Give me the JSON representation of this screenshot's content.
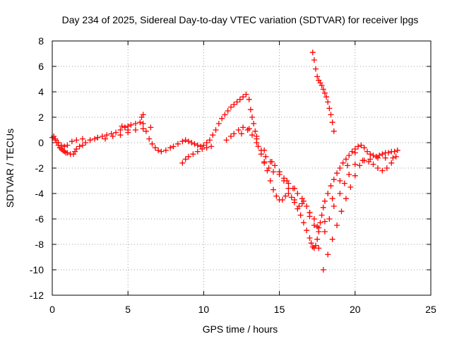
{
  "chart_data": {
    "type": "scatter",
    "title": "Day 234 of 2025, Sidereal Day-to-day VTEC variation (SDTVAR) for receiver lpgs",
    "xlabel": "GPS time / hours",
    "ylabel": "SDTVAR / TECUs",
    "xlim": [
      0,
      25
    ],
    "ylim": [
      -12,
      8
    ],
    "xticks": [
      0,
      5,
      10,
      15,
      20,
      25
    ],
    "yticks": [
      -12,
      -10,
      -8,
      -6,
      -4,
      -2,
      0,
      2,
      4,
      6,
      8
    ],
    "xtick_labels": [
      "0",
      "5",
      "10",
      "15",
      "20",
      "25"
    ],
    "ytick_labels": [
      "-12",
      "-10",
      "-8",
      "-6",
      "-4",
      "-2",
      "0",
      "2",
      "4",
      "6",
      "8"
    ],
    "grid": true,
    "marker": "+",
    "color": "#ff0000",
    "series": [
      {
        "name": "SDTVAR",
        "x": [
          0.0,
          0.1,
          0.2,
          0.3,
          0.4,
          0.5,
          0.6,
          0.7,
          0.8,
          0.9,
          1.0,
          1.2,
          1.4,
          1.5,
          1.6,
          1.8,
          2.0,
          2.2,
          2.5,
          2.8,
          3.0,
          3.3,
          3.6,
          3.9,
          4.2,
          4.5,
          4.8,
          5.0,
          5.2,
          5.5,
          5.8,
          6.0,
          6.2,
          6.4,
          6.6,
          6.8,
          7.0,
          7.2,
          7.5,
          7.8,
          8.0,
          8.3,
          8.6,
          8.8,
          9.0,
          9.2,
          9.4,
          9.6,
          9.8,
          10.0,
          10.2,
          10.4,
          10.6,
          10.8,
          11.0,
          11.2,
          11.4,
          11.6,
          11.8,
          12.0,
          12.2,
          12.4,
          12.6,
          12.8,
          13.0,
          13.1,
          13.2,
          13.3,
          13.4,
          13.5,
          13.6,
          13.8,
          14.0,
          14.2,
          14.4,
          14.6,
          14.8,
          15.0,
          15.2,
          15.4,
          15.6,
          15.8,
          16.0,
          16.2,
          16.4,
          16.6,
          16.8,
          17.0,
          17.1,
          17.2,
          17.3,
          17.4,
          17.5,
          17.6,
          17.7,
          17.8,
          17.9,
          18.0,
          18.2,
          18.4,
          18.6,
          18.8,
          19.0,
          19.2,
          19.4,
          19.6,
          19.8,
          20.0,
          20.2,
          20.4,
          20.6,
          20.8,
          21.0,
          21.2,
          21.4,
          21.6,
          21.8,
          22.0,
          22.2,
          22.4,
          22.6,
          22.8,
          17.2,
          17.3,
          17.4,
          17.5,
          17.6,
          17.7,
          17.8,
          17.9,
          18.0,
          18.1,
          18.2,
          18.3,
          18.4,
          18.5,
          18.6,
          0.2,
          0.4,
          0.6,
          0.8,
          1.0,
          1.3,
          1.6,
          2.0,
          2.5,
          3.0,
          3.5,
          4.0,
          4.5,
          5.0,
          5.5,
          6.0,
          6.5,
          11.5,
          11.8,
          12.0,
          12.3,
          12.6,
          12.9,
          13.2,
          13.5,
          13.8,
          14.1,
          14.4,
          14.7,
          15.0,
          15.3,
          15.6,
          15.9,
          16.2,
          16.5,
          16.8,
          17.0,
          17.3,
          17.6,
          17.9,
          18.2,
          18.5,
          18.8,
          19.1,
          19.4,
          19.7,
          20.0,
          20.3,
          20.6,
          20.9,
          21.2,
          21.5,
          21.8,
          22.1,
          22.4,
          22.7,
          8.6,
          8.8,
          9.0,
          9.3,
          9.6,
          9.9,
          10.2,
          10.5,
          14.0,
          14.3,
          14.6,
          15.0,
          15.3,
          15.6,
          16.0,
          16.3,
          16.6,
          17.0,
          17.3,
          17.6,
          18.0,
          18.3,
          18.6,
          19.0,
          19.3,
          19.6,
          20.0,
          20.5,
          21.0,
          21.5,
          22.0,
          22.5,
          12.5,
          13.0,
          13.5,
          14.0,
          14.5,
          15.0,
          15.5,
          16.0,
          16.5,
          17.0,
          17.5,
          18.0,
          18.5,
          19.0,
          19.5,
          20.0,
          4.6,
          4.8,
          5.0,
          5.9,
          6.0
        ],
        "y": [
          0.4,
          0.5,
          0.3,
          0.0,
          -0.2,
          -0.4,
          -0.5,
          -0.6,
          -0.7,
          -0.8,
          -0.8,
          -0.9,
          -0.9,
          -0.7,
          -0.5,
          -0.3,
          -0.2,
          0.0,
          0.2,
          0.3,
          0.4,
          0.5,
          0.6,
          0.7,
          0.8,
          1.0,
          1.2,
          1.3,
          1.4,
          1.5,
          1.6,
          1.5,
          0.9,
          0.3,
          -0.1,
          -0.4,
          -0.6,
          -0.7,
          -0.6,
          -0.4,
          -0.3,
          -0.1,
          0.1,
          0.2,
          0.1,
          0.0,
          -0.1,
          -0.2,
          -0.3,
          -0.2,
          0.0,
          0.2,
          0.6,
          1.0,
          1.5,
          1.9,
          2.2,
          2.5,
          2.8,
          3.0,
          3.2,
          3.4,
          3.6,
          3.8,
          3.4,
          2.6,
          2.0,
          1.5,
          0.9,
          0.3,
          -0.3,
          -0.9,
          -1.5,
          -2.2,
          -3.0,
          -3.7,
          -4.2,
          -4.5,
          -4.5,
          -4.2,
          -4.0,
          -4.3,
          -4.7,
          -5.2,
          -5.7,
          -6.3,
          -6.9,
          -7.5,
          -7.9,
          -8.2,
          -8.3,
          -8.1,
          -7.6,
          -7.0,
          -6.3,
          -5.7,
          -5.1,
          -4.6,
          -4.0,
          -3.4,
          -2.9,
          -2.4,
          -2.0,
          -1.6,
          -1.3,
          -1.0,
          -0.7,
          -0.5,
          -0.3,
          -0.2,
          -0.4,
          -0.7,
          -0.9,
          -1.0,
          -1.1,
          -1.0,
          -0.9,
          -0.8,
          -0.8,
          -0.7,
          -0.7,
          -0.6,
          7.1,
          6.5,
          5.8,
          5.2,
          4.9,
          4.7,
          4.5,
          4.2,
          3.9,
          3.6,
          3.2,
          2.7,
          2.2,
          1.6,
          0.9,
          0.2,
          0.0,
          -0.2,
          -0.3,
          -0.2,
          0.1,
          0.2,
          0.3,
          0.2,
          0.4,
          0.3,
          0.5,
          0.6,
          0.8,
          1.0,
          1.1,
          1.2,
          0.2,
          0.5,
          0.7,
          1.0,
          1.2,
          1.0,
          0.6,
          0.0,
          -0.6,
          -1.1,
          -1.5,
          -1.8,
          -2.3,
          -2.8,
          -3.2,
          -3.6,
          -4.0,
          -4.4,
          -5.0,
          -5.5,
          -6.5,
          -8.3,
          -10.0,
          -8.8,
          -7.6,
          -6.5,
          -5.4,
          -4.4,
          -3.5,
          -2.6,
          -1.8,
          -1.4,
          -1.5,
          -1.7,
          -2.0,
          -2.2,
          -2.0,
          -1.6,
          -1.1,
          -1.6,
          -1.3,
          -1.1,
          -0.9,
          -0.7,
          -0.5,
          -0.4,
          -0.3,
          -1.6,
          -2.0,
          -2.3,
          -2.5,
          -3.0,
          -3.6,
          -4.5,
          -5.0,
          -4.6,
          -5.5,
          -6.0,
          -6.7,
          -7.0,
          -6.0,
          -5.0,
          -4.0,
          -3.2,
          -2.5,
          -1.7,
          -1.4,
          -1.3,
          -1.2,
          -1.2,
          -1.2,
          0.7,
          1.1,
          0.5,
          -0.6,
          -1.5,
          -2.3,
          -3.0,
          -3.6,
          -4.8,
          -5.8,
          -6.6,
          -6.2,
          -4.4,
          -3.0,
          -1.8,
          -0.8,
          1.3,
          1.2,
          1.0,
          2.0,
          2.2
        ]
      }
    ]
  }
}
